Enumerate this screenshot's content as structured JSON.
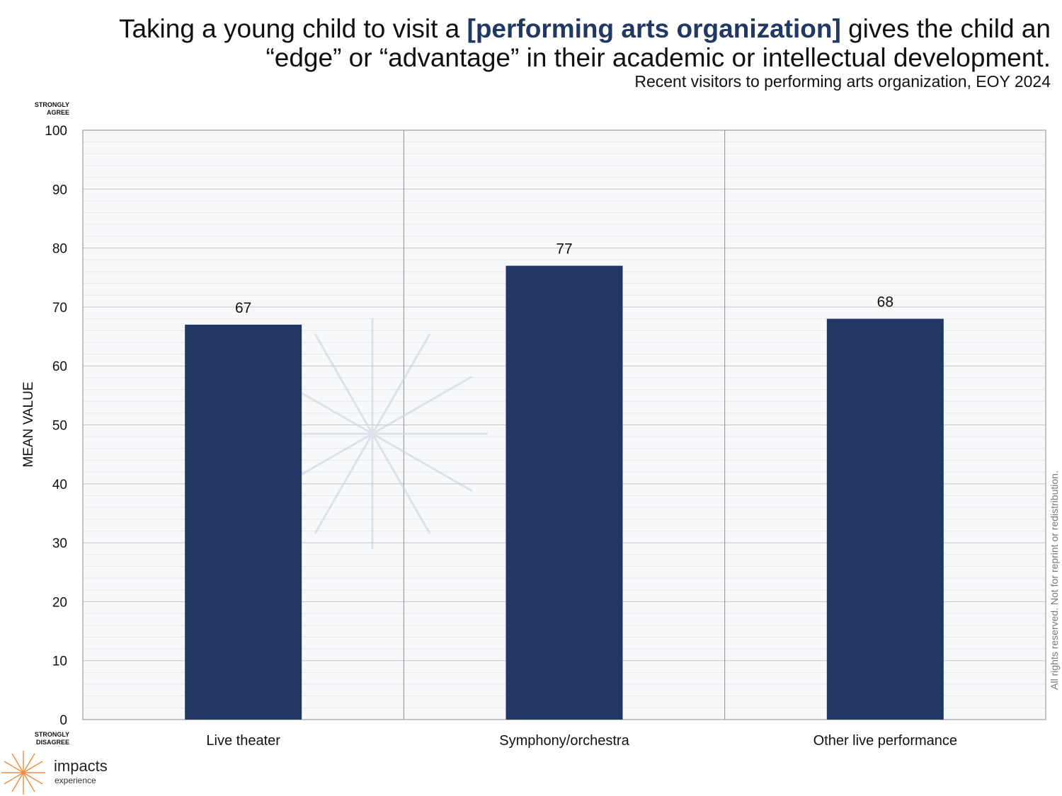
{
  "header": {
    "title_prefix": "Taking a young child to visit a ",
    "title_highlight": "[performing arts organization]",
    "title_suffix": " gives the child an “edge” or “advantage” in their academic or intellectual development.",
    "subtitle": "Recent visitors to performing arts organization, EOY 2024"
  },
  "scale": {
    "top_label": "STRONGLY AGREE",
    "bottom_label": "STRONGLY DISAGREE"
  },
  "side_note": "All rights reserved. Not for reprint or redistribution.",
  "logo": {
    "icon": "starburst-icon",
    "name": "impacts",
    "sub": "experience"
  },
  "colors": {
    "bar": "#213864",
    "highlight": "#213864",
    "logo_accent": "#f08a3c"
  },
  "chart_data": {
    "type": "bar",
    "categories": [
      "Live theater",
      "Symphony/orchestra",
      "Other live performance"
    ],
    "values": [
      67,
      77,
      68
    ],
    "ylabel": "MEAN VALUE",
    "xlabel": "",
    "ylim": [
      0,
      100
    ],
    "yticks": [
      0,
      10,
      20,
      30,
      40,
      50,
      60,
      70,
      80,
      90,
      100
    ],
    "grid": true,
    "data_labels": true
  }
}
